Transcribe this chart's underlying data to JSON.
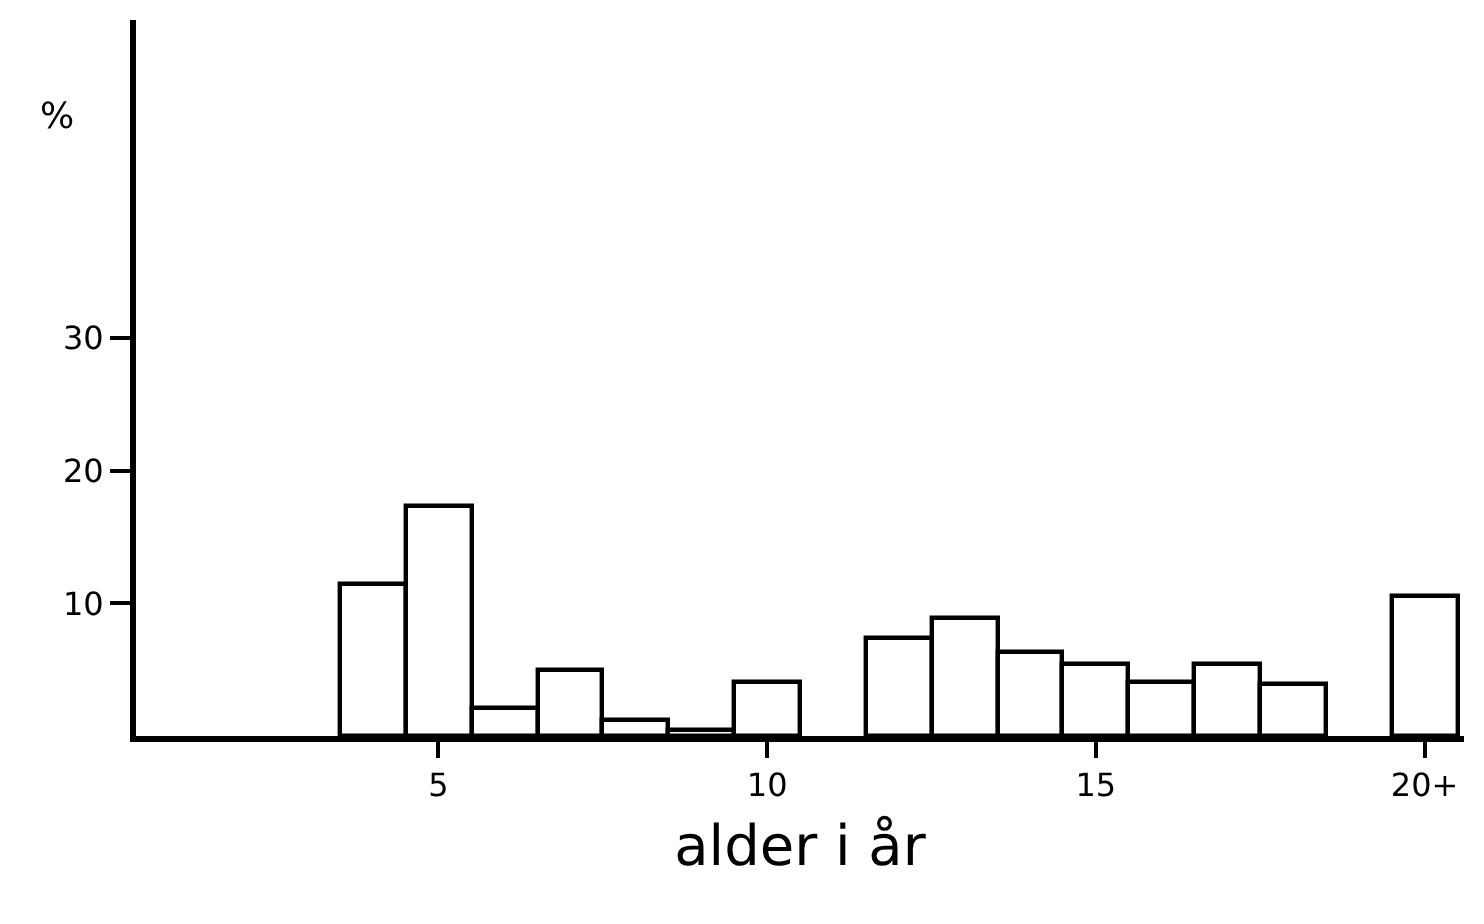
{
  "chart_data": {
    "type": "bar",
    "xlabel": "alder i år",
    "ylabel": "%",
    "x": [
      4,
      5,
      6,
      7,
      8,
      9,
      10,
      11,
      12,
      13,
      14,
      15,
      16,
      17,
      18,
      19,
      20
    ],
    "values": [
      11.4,
      17.4,
      2.1,
      5.0,
      1.2,
      0.5,
      4.1,
      null,
      7.4,
      8.9,
      6.4,
      5.5,
      4.1,
      5.5,
      3.9,
      null,
      10.5
    ],
    "color": "#ffffff",
    "xlim": [
      0.4,
      20.6
    ],
    "xticks": [
      5,
      10,
      15,
      {
        "value": 20,
        "label": "20+"
      }
    ],
    "ylim": [
      0,
      54
    ],
    "yticks": [
      10,
      20,
      30
    ]
  }
}
